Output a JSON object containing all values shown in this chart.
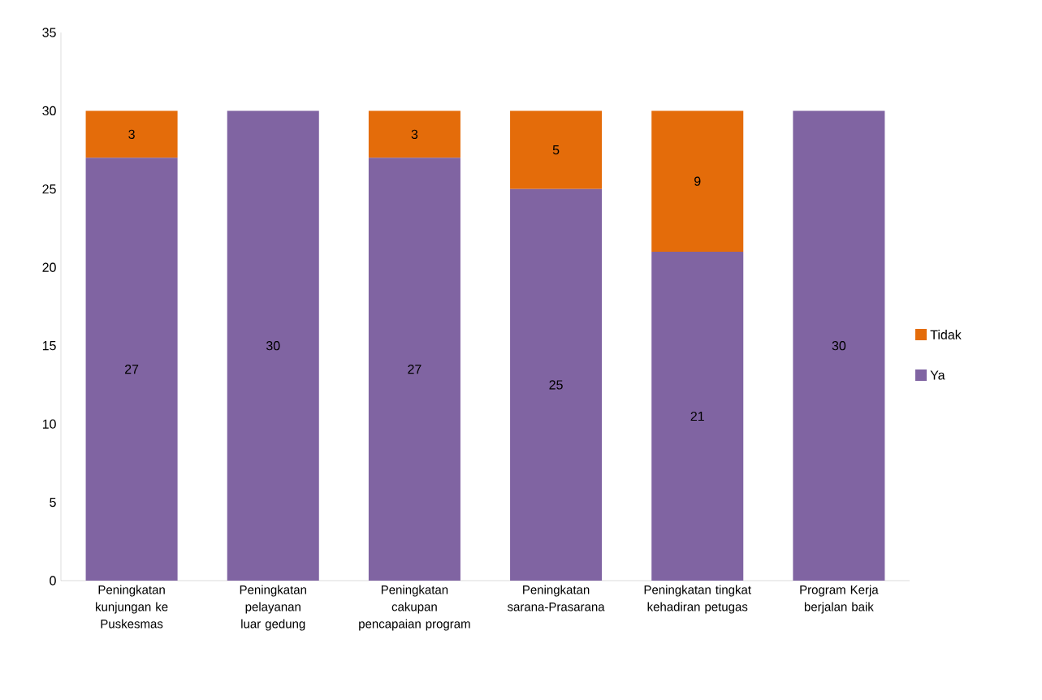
{
  "chart_data": {
    "type": "bar",
    "stacked": true,
    "categories": [
      "Peningkatan kunjungan ke Puskesmas",
      "Peningkatan pelayanan luar gedung",
      "Peningkatan cakupan pencapaian program",
      "Peningkatan sarana-Prasarana",
      "Peningkatan tingkat kehadiran petugas",
      "Program Kerja berjalan baik"
    ],
    "series": [
      {
        "name": "Ya",
        "color": "#8064a2",
        "values": [
          27,
          30,
          27,
          25,
          21,
          30
        ]
      },
      {
        "name": "Tidak",
        "color": "#e46c0a",
        "values": [
          3,
          null,
          3,
          5,
          9,
          null
        ]
      }
    ],
    "ylim": [
      0,
      35
    ],
    "yticks": [
      0,
      5,
      10,
      15,
      20,
      25,
      30,
      35
    ],
    "data_labels": true,
    "legend": "right",
    "grid": false
  }
}
